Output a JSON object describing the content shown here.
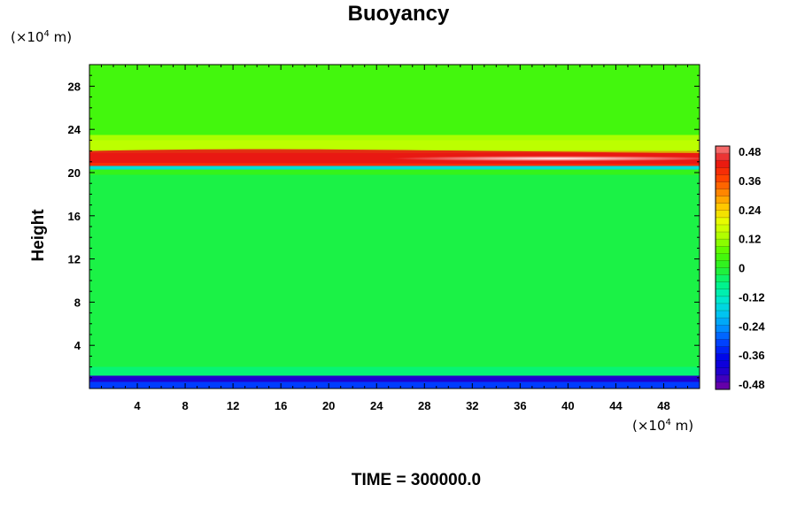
{
  "chart_data": {
    "type": "heatmap",
    "title": "Buoyancy",
    "xlabel": "",
    "ylabel": "Height",
    "x_unit": "(×10⁴ m)",
    "y_unit": "(×10⁴ m)",
    "xlim": [
      0,
      51
    ],
    "ylim": [
      0,
      30
    ],
    "xticks": [
      4,
      8,
      12,
      16,
      20,
      24,
      28,
      32,
      36,
      40,
      44,
      48
    ],
    "yticks": [
      4,
      8,
      12,
      16,
      20,
      24,
      28
    ],
    "colorbar": {
      "vmin": -0.48,
      "vmax": 0.48,
      "labels": [
        "0.48",
        "0.36",
        "0.24",
        "0.12",
        "0",
        "-0.12",
        "-0.24",
        "-0.36",
        "-0.48"
      ]
    },
    "field_description": [
      {
        "height_range": [
          0.0,
          0.6
        ],
        "buoyancy": -0.3
      },
      {
        "height_range": [
          0.6,
          1.2
        ],
        "buoyancy": -0.42
      },
      {
        "height_range": [
          1.2,
          2.0
        ],
        "buoyancy": -0.05
      },
      {
        "height_range": [
          2.0,
          19.8
        ],
        "buoyancy": -0.02
      },
      {
        "height_range": [
          19.8,
          20.3
        ],
        "buoyancy": 0.02
      },
      {
        "height_range": [
          20.3,
          20.6
        ],
        "buoyancy": -0.15
      },
      {
        "height_range": [
          20.6,
          22.0
        ],
        "buoyancy": 0.38
      },
      {
        "height_range": [
          22.0,
          23.5
        ],
        "buoyancy": 0.12
      },
      {
        "height_range": [
          23.5,
          30.0
        ],
        "buoyancy": 0.04
      }
    ]
  },
  "footer": {
    "time_label": "TIME = 300000.0"
  }
}
